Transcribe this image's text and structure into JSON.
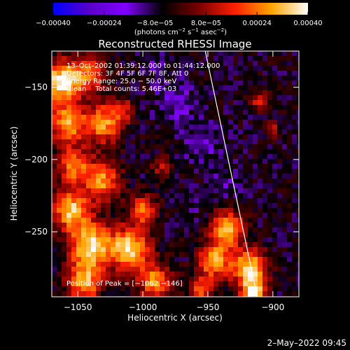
{
  "chart_data": {
    "type": "heatmap",
    "title": "Reconstructed RHESSI Image",
    "xlabel": "Heliocentric X (arcsec)",
    "ylabel": "Heliocentric Y (arcsec)",
    "xlim": [
      -1070,
      -880
    ],
    "ylim": [
      -295,
      -125
    ],
    "x_ticks": [
      -1050,
      -1000,
      -950,
      -900
    ],
    "x_tick_labels": [
      "−1050",
      "−1000",
      "−950",
      "−900"
    ],
    "y_ticks": [
      -150,
      -200,
      -250
    ],
    "y_tick_labels": [
      "−150",
      "−200",
      "−250"
    ],
    "colorbar": {
      "range": [
        -0.0004,
        0.0004
      ],
      "ticks": [
        -0.0004,
        -0.00024,
        -8e-05,
        8e-05,
        0.00024,
        0.0004
      ],
      "tick_labels": [
        "−0.00040",
        "−0.00024",
        "−8.0e−05",
        "8.0e−05",
        "0.00024",
        "0.00040"
      ],
      "label_main": "(photons cm",
      "label_exp1": "−2",
      "label_mid1": " s",
      "label_exp2": "−1",
      "label_mid2": " asec",
      "label_exp3": "−2",
      "label_end": ")",
      "colors": [
        "#0000ff",
        "#5a00c8",
        "#8000ff",
        "#000000",
        "#7a0000",
        "#ff2000",
        "#ffa500",
        "#ffffff"
      ]
    },
    "annotations": [
      "13–Oct–2002 01:39:12.000 to 01:44:12.000",
      "Detectors: 3F 4F 5F 6F 7F 8F, Att 0",
      "Energy Range: 25.0 − 50.0 keV",
      "Clean    Total counts: 5.46E+03"
    ],
    "peak_label": "Position of Peak = [−1062,−146]",
    "limb_line": [
      [
        -952,
        -125
      ],
      [
        -912,
        -295
      ]
    ],
    "hot_regions": [
      {
        "x": -1062,
        "y": -146,
        "r": 14,
        "v": 0.0004
      },
      {
        "x": -1058,
        "y": -175,
        "r": 14,
        "v": 0.00028
      },
      {
        "x": -1040,
        "y": -140,
        "r": 12,
        "v": 0.00022
      },
      {
        "x": -1030,
        "y": -175,
        "r": 14,
        "v": 0.00028
      },
      {
        "x": -1052,
        "y": -205,
        "r": 13,
        "v": 0.00024
      },
      {
        "x": -1030,
        "y": -215,
        "r": 13,
        "v": 0.00026
      },
      {
        "x": -1055,
        "y": -235,
        "r": 14,
        "v": 0.00032
      },
      {
        "x": -1040,
        "y": -260,
        "r": 16,
        "v": 0.00036
      },
      {
        "x": -1010,
        "y": -262,
        "r": 15,
        "v": 0.00036
      },
      {
        "x": -1000,
        "y": -235,
        "r": 10,
        "v": 0.00022
      },
      {
        "x": -990,
        "y": -285,
        "r": 12,
        "v": 0.00028
      },
      {
        "x": -1045,
        "y": -285,
        "r": 13,
        "v": 0.00028
      },
      {
        "x": -1015,
        "y": -165,
        "r": 8,
        "v": 0.00012
      },
      {
        "x": -985,
        "y": -205,
        "r": 8,
        "v": 0.0001
      },
      {
        "x": -945,
        "y": -270,
        "r": 12,
        "v": 0.0003
      },
      {
        "x": -935,
        "y": -248,
        "r": 12,
        "v": 0.00032
      },
      {
        "x": -918,
        "y": -275,
        "r": 13,
        "v": 0.00036
      },
      {
        "x": -915,
        "y": -293,
        "r": 9,
        "v": 0.0004
      },
      {
        "x": -955,
        "y": -290,
        "r": 9,
        "v": 0.0002
      },
      {
        "x": -910,
        "y": -160,
        "r": 7,
        "v": 0.00014
      },
      {
        "x": -900,
        "y": -180,
        "r": 6,
        "v": 0.0001
      }
    ],
    "cold_regions": [
      {
        "x": -975,
        "y": -160,
        "r": 14,
        "v": -0.00016
      },
      {
        "x": -955,
        "y": -190,
        "r": 14,
        "v": -0.00014
      },
      {
        "x": -935,
        "y": -215,
        "r": 12,
        "v": -0.00012
      },
      {
        "x": -990,
        "y": -135,
        "r": 10,
        "v": -0.00012
      },
      {
        "x": -960,
        "y": -235,
        "r": 9,
        "v": -0.0001
      }
    ]
  },
  "footer": {
    "date": "2–May–2022 09:45"
  }
}
